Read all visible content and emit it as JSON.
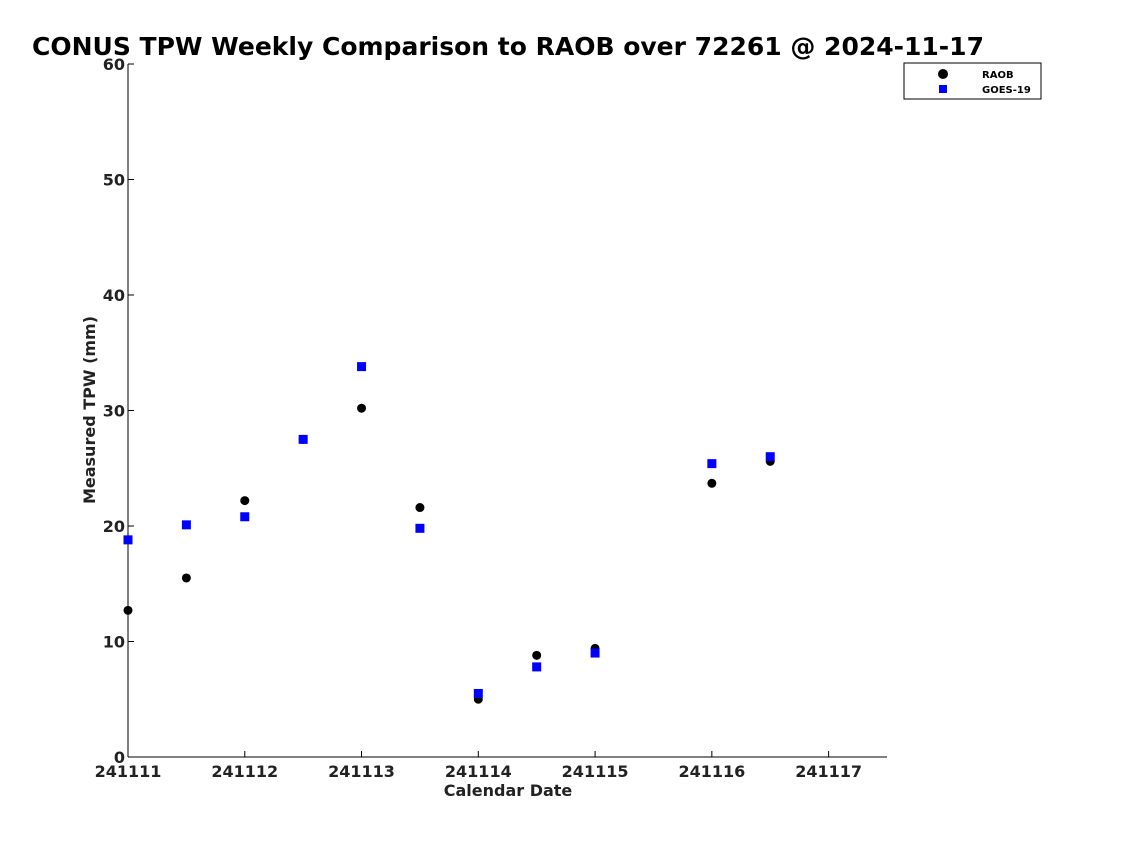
{
  "chart_data": {
    "type": "scatter",
    "title": "CONUS TPW Weekly Comparison to RAOB over 72261 @ 2024-11-17",
    "xlabel": "Calendar Date",
    "ylabel": "Measured TPW (mm)",
    "xlim": [
      0,
      6.5
    ],
    "ylim": [
      0,
      60
    ],
    "x_ticks": [
      0,
      1,
      2,
      3,
      4,
      5,
      6
    ],
    "x_tick_labels": [
      "241111",
      "241112",
      "241113",
      "241114",
      "241115",
      "241116",
      "241117"
    ],
    "y_ticks": [
      0,
      10,
      20,
      30,
      40,
      50,
      60
    ],
    "y_tick_labels": [
      "0",
      "10",
      "20",
      "30",
      "40",
      "50",
      "60"
    ],
    "grid": false,
    "legend_position": "top-right",
    "series": [
      {
        "name": "RAOB",
        "marker": "circle",
        "color": "#000000",
        "x": [
          0,
          0.5,
          1,
          1.5,
          2,
          2.5,
          3,
          3.5,
          4,
          5,
          5.5
        ],
        "values": [
          12.7,
          15.5,
          22.2,
          27.5,
          30.2,
          21.6,
          5.0,
          8.8,
          9.4,
          23.7,
          25.6
        ]
      },
      {
        "name": "GOES-19",
        "marker": "square",
        "color": "#0000ff",
        "x": [
          0,
          0.5,
          1,
          1.5,
          2,
          2.5,
          3,
          3.5,
          4,
          5,
          5.5
        ],
        "values": [
          18.8,
          20.1,
          20.8,
          27.5,
          33.8,
          19.8,
          5.5,
          7.8,
          9.0,
          25.4,
          26.0
        ]
      }
    ]
  }
}
